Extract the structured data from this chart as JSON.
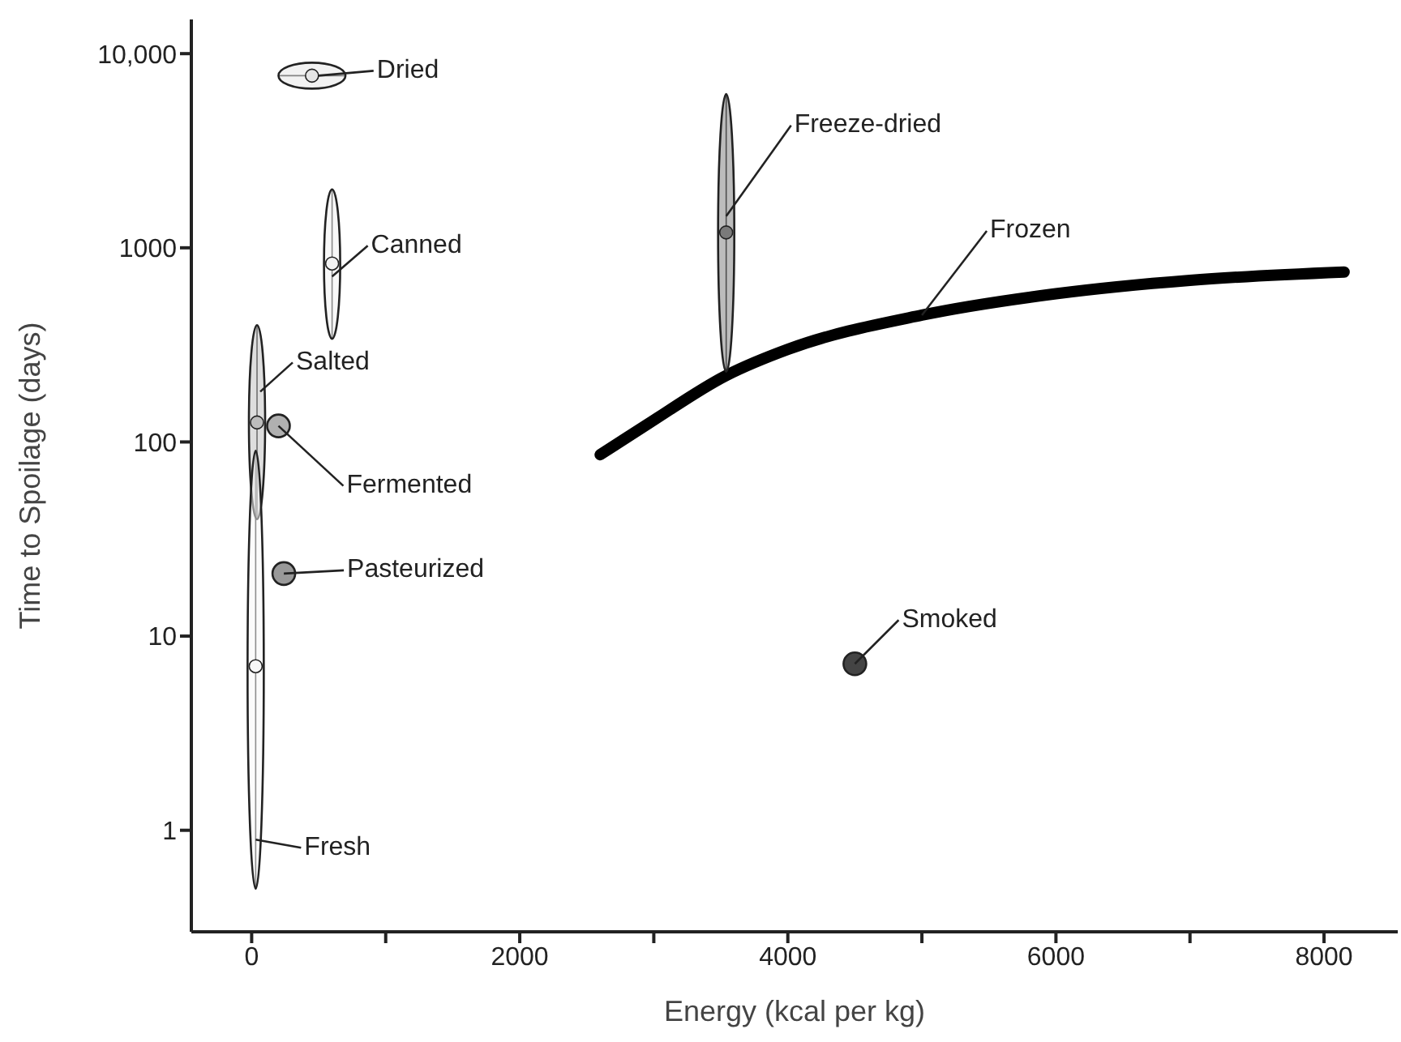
{
  "chart_data": {
    "type": "scatter",
    "xlabel": "Energy (kcal per kg)",
    "ylabel": "Time to Spoilage (days)",
    "log": "y",
    "grid": false,
    "legend": "top left",
    "xlim": [
      -450,
      8550
    ],
    "xticks": [
      0,
      {
        "value": 1000,
        "label": null
      },
      2000,
      {
        "value": 3000,
        "label": null
      },
      4000,
      {
        "value": 5000,
        "label": null
      },
      6000,
      {
        "value": 7000,
        "label": null
      },
      8000
    ],
    "ylim": [
      0.3,
      15000
    ],
    "yticks": [
      1,
      10,
      100,
      1000,
      {
        "value": 10000,
        "label": "10,000"
      }
    ],
    "series": [
      {
        "name": "Dried",
        "color": "#e6e6e6",
        "x": [
          450
        ],
        "values": [
          7700
        ],
        "xerrors": [
          [
            200,
            700
          ]
        ]
      },
      {
        "name": "Canned",
        "color": "#f2f2f2",
        "x": [
          600
        ],
        "values": [
          830
        ],
        "errors": [
          [
            340,
            2000
          ]
        ]
      },
      {
        "name": "Salted",
        "color": "#bdbdbd",
        "x": [
          40
        ],
        "values": [
          126
        ],
        "errors": [
          [
            40,
            400
          ]
        ]
      },
      {
        "name": "Fresh",
        "color": "#f7f7f7",
        "x": [
          30
        ],
        "values": [
          7
        ],
        "errors": [
          [
            0.5,
            90
          ]
        ]
      },
      {
        "name": "Fermented",
        "color": "#b0b0b0",
        "marker": "circle",
        "x": [
          200
        ],
        "values": [
          121
        ]
      },
      {
        "name": "Pasteurized",
        "color": "#999999",
        "marker": "circle",
        "x": [
          240
        ],
        "values": [
          21
        ]
      },
      {
        "name": "Freeze-dried",
        "color": "#7a7a7a",
        "x": [
          3540
        ],
        "values": [
          1200
        ],
        "errors": [
          [
            230,
            6200
          ]
        ]
      },
      {
        "name": "Frozen",
        "type": "line",
        "color": "#000000",
        "line_style": "solid",
        "marker": "none",
        "x": [
          2600,
          2950,
          3540,
          4000,
          5000,
          6000,
          7000,
          8150
        ],
        "values": [
          86,
          123,
          220,
          300,
          450,
          580,
          680,
          750
        ]
      },
      {
        "name": "Smoked",
        "color": "#444444",
        "marker": "circle",
        "x": [
          4500
        ],
        "values": [
          7.2
        ]
      }
    ]
  }
}
